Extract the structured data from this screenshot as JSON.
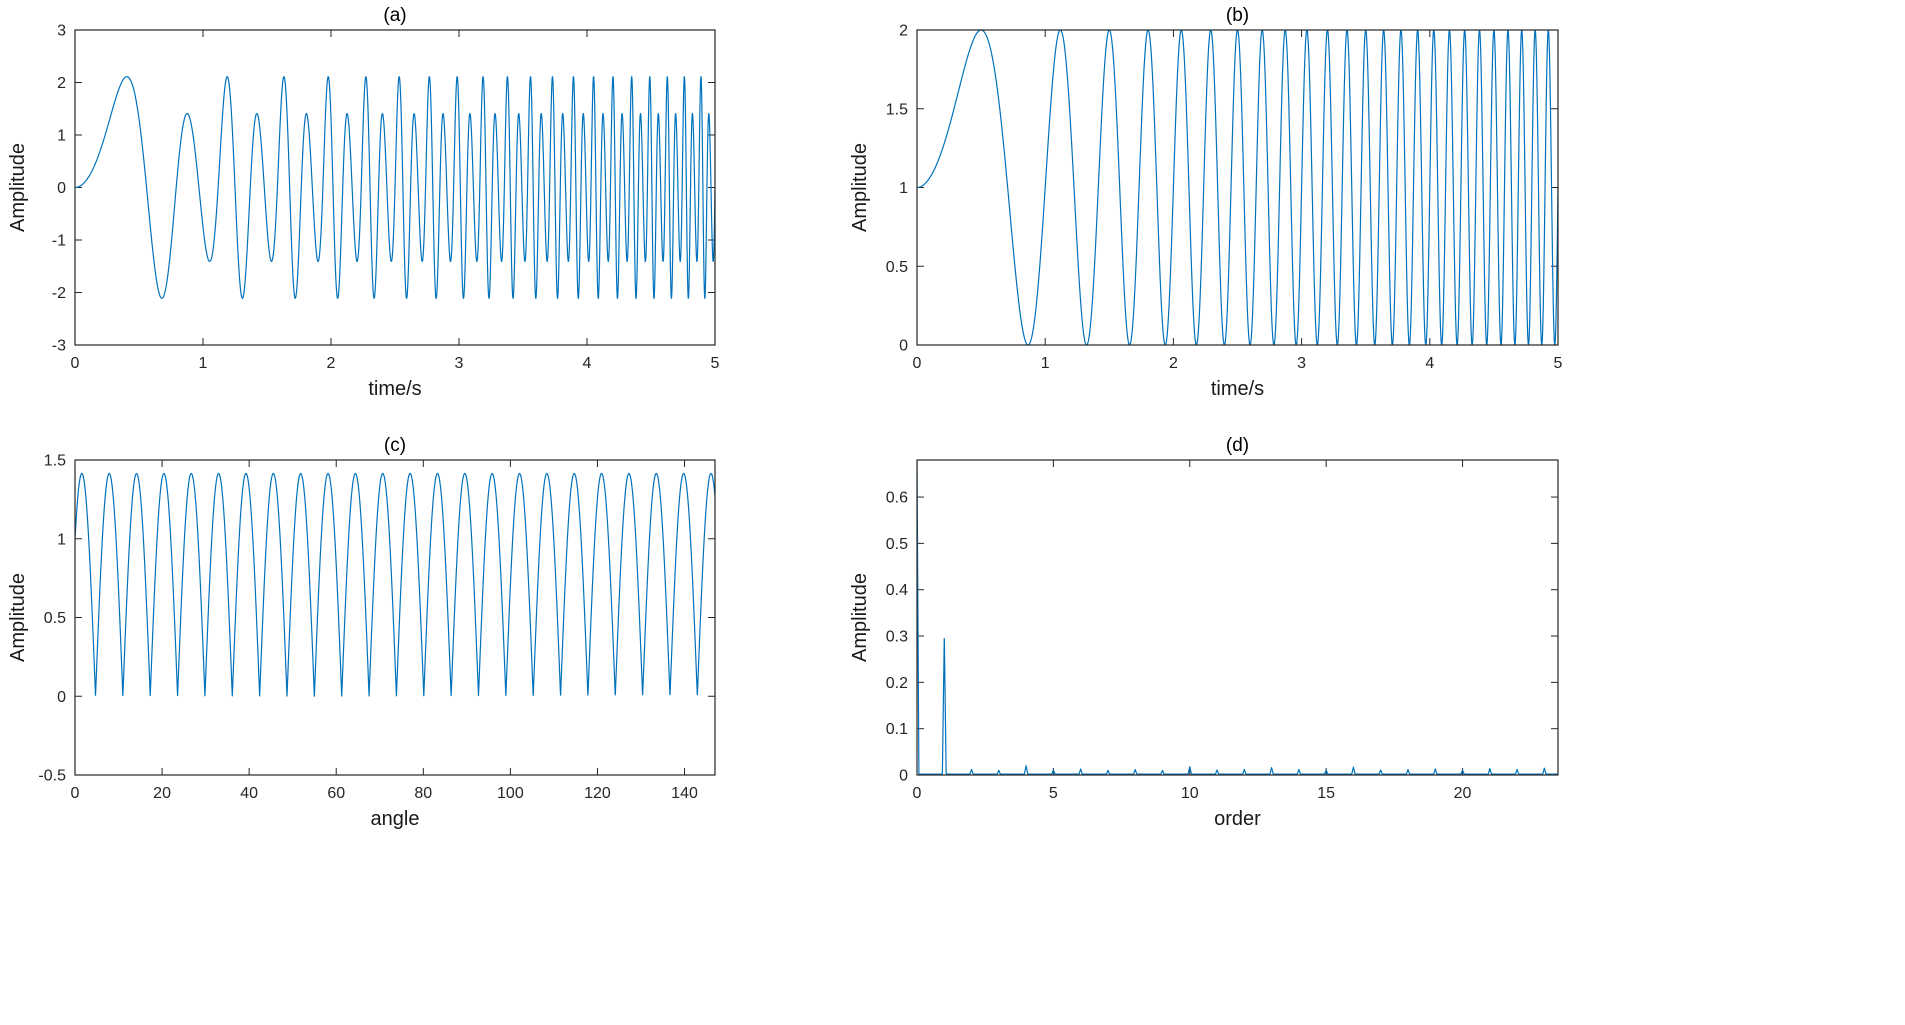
{
  "figure": {
    "background": "#ffffff",
    "line_color": "#0072BD",
    "axis_color": "#262626",
    "label_color": "#1a1a1a",
    "title_color": "#000000"
  },
  "chart_data": [
    {
      "id": "a",
      "type": "line",
      "title": "(a)",
      "xlabel": "time/s",
      "ylabel": "Amplitude",
      "xlim": [
        0,
        5
      ],
      "ylim": [
        -3,
        3
      ],
      "xticks": [
        0,
        1,
        2,
        3,
        4,
        5
      ],
      "yticks": [
        -3,
        -2,
        -1,
        0,
        1,
        2,
        3
      ],
      "grid": false,
      "legend": null,
      "signal": {
        "kind": "am_chirp",
        "description": "amplitude-modulated chirp; instantaneous frequency rises with time; peak envelope alternates between about 1.3 and 2.25",
        "formula": "y(t) = (1.75 + 0.5*sin(2*pi*0.8*t^2)) * sin(2*pi*1.6*t^2)",
        "base_amp": 1.75,
        "mod_amp": 0.5,
        "mod_rate": 0.8,
        "carrier_rate": 1.6,
        "envelope": [
          1.25,
          2.25
        ]
      }
    },
    {
      "id": "b",
      "type": "line",
      "title": "(b)",
      "xlabel": "time/s",
      "ylabel": "Amplitude",
      "xlim": [
        0,
        5
      ],
      "ylim": [
        0,
        2
      ],
      "xticks": [
        0,
        1,
        2,
        3,
        4,
        5
      ],
      "yticks": [
        0,
        0.5,
        1,
        1.5,
        2
      ],
      "grid": false,
      "legend": null,
      "signal": {
        "kind": "offset_chirp",
        "description": "unit-offset swept sine oscillating between 0 and 2, starting at 1, first peak near t=0.5 s, about 10 Hz at t=5 s",
        "formula": "y(t) = 1 + sin(2*pi*t^2)",
        "offset": 1,
        "amp": 1,
        "rate": 1.0
      }
    },
    {
      "id": "c",
      "type": "line",
      "title": "(c)",
      "xlabel": "angle",
      "ylabel": "Amplitude",
      "xlim": [
        0,
        147
      ],
      "ylim": [
        -0.5,
        1.5
      ],
      "xticks": [
        0,
        20,
        40,
        60,
        80,
        100,
        120,
        140
      ],
      "yticks": [
        -0.5,
        0,
        0.5,
        1,
        1.5
      ],
      "grid": false,
      "legend": null,
      "signal": {
        "kind": "abs_sine",
        "description": "angle-domain resampled signal: rectified sine humps of equal width, one hump per 2*pi rad, peaks at sqrt(2)~1.414, minima touching 0",
        "formula": "y(theta) = sqrt(2)*|sin(theta/2 + pi/4)|",
        "amp": 1.4142,
        "peak_value": 1.4142,
        "min_value": 0
      }
    },
    {
      "id": "d",
      "type": "line",
      "title": "(d)",
      "xlabel": "order",
      "ylabel": "Amplitude",
      "xlim": [
        0,
        23.5
      ],
      "ylim": [
        0,
        0.68
      ],
      "xticks": [
        0,
        5,
        10,
        15,
        20
      ],
      "yticks": [
        0,
        0.1,
        0.2,
        0.3,
        0.4,
        0.5,
        0.6
      ],
      "grid": false,
      "legend": null,
      "signal": {
        "kind": "order_spectrum",
        "description": "order spectrum: dominant component at order 0 reaching top of axis, order-1 peak of amplitude 0.3, tiny peaks at each integer order up to 23",
        "baseline": 0.002,
        "peak_width": 0.07,
        "peaks": [
          {
            "order": 0,
            "amp": 0.675
          },
          {
            "order": 1,
            "amp": 0.3
          },
          {
            "order": 2,
            "amp": 0.012
          },
          {
            "order": 3,
            "amp": 0.01
          },
          {
            "order": 4,
            "amp": 0.02
          },
          {
            "order": 5,
            "amp": 0.011
          },
          {
            "order": 6,
            "amp": 0.013
          },
          {
            "order": 7,
            "amp": 0.01
          },
          {
            "order": 8,
            "amp": 0.012
          },
          {
            "order": 9,
            "amp": 0.01
          },
          {
            "order": 10,
            "amp": 0.018
          },
          {
            "order": 11,
            "amp": 0.011
          },
          {
            "order": 12,
            "amp": 0.012
          },
          {
            "order": 13,
            "amp": 0.016
          },
          {
            "order": 14,
            "amp": 0.012
          },
          {
            "order": 15,
            "amp": 0.011
          },
          {
            "order": 16,
            "amp": 0.017
          },
          {
            "order": 17,
            "amp": 0.011
          },
          {
            "order": 18,
            "amp": 0.012
          },
          {
            "order": 19,
            "amp": 0.013
          },
          {
            "order": 20,
            "amp": 0.011
          },
          {
            "order": 21,
            "amp": 0.014
          },
          {
            "order": 22,
            "amp": 0.012
          },
          {
            "order": 23,
            "amp": 0.015
          }
        ]
      }
    }
  ]
}
